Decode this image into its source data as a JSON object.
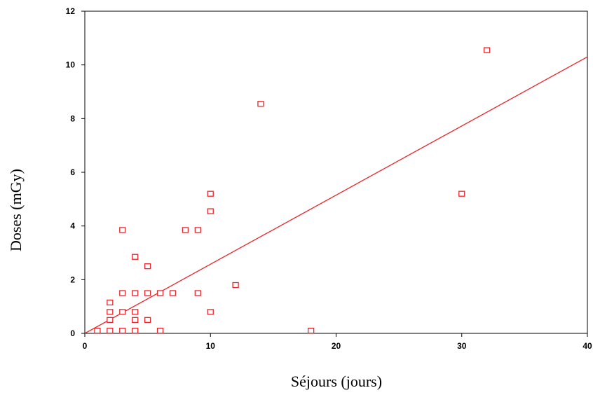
{
  "chart_data": {
    "type": "scatter",
    "title": "",
    "xlabel": "Séjours (jours)",
    "ylabel": "Doses (mGy)",
    "xlim": [
      0,
      40
    ],
    "ylim": [
      0,
      12
    ],
    "x_ticks": [
      0,
      10,
      20,
      30,
      40
    ],
    "y_ticks": [
      0,
      2,
      4,
      6,
      8,
      10,
      12
    ],
    "x_tick_labels": [
      "0",
      "10",
      "20",
      "30",
      "40"
    ],
    "y_tick_labels": [
      "0",
      "2",
      "4",
      "6",
      "8",
      "10",
      "12"
    ],
    "grid": false,
    "legend": "none",
    "series": [
      {
        "marker": "open-square",
        "color": "#e8262c",
        "points": [
          [
            1,
            0.1
          ],
          [
            2,
            0.1
          ],
          [
            2,
            0.5
          ],
          [
            2,
            0.8
          ],
          [
            2,
            1.15
          ],
          [
            3,
            0.1
          ],
          [
            3,
            0.8
          ],
          [
            3,
            1.5
          ],
          [
            3,
            3.85
          ],
          [
            4,
            0.1
          ],
          [
            4,
            0.5
          ],
          [
            4,
            0.8
          ],
          [
            4,
            1.5
          ],
          [
            4,
            2.85
          ],
          [
            5,
            0.5
          ],
          [
            5,
            1.5
          ],
          [
            5,
            2.5
          ],
          [
            6,
            0.1
          ],
          [
            6,
            1.5
          ],
          [
            7,
            1.5
          ],
          [
            8,
            3.85
          ],
          [
            9,
            1.5
          ],
          [
            9,
            3.85
          ],
          [
            10,
            0.8
          ],
          [
            10,
            4.55
          ],
          [
            10,
            5.2
          ],
          [
            12,
            1.8
          ],
          [
            14,
            8.55
          ],
          [
            18,
            0.1
          ],
          [
            30,
            5.2
          ],
          [
            32,
            10.55
          ]
        ]
      }
    ],
    "fit_line": {
      "type": "linear",
      "color": "#e8262c",
      "from": [
        0,
        0
      ],
      "to": [
        40,
        10.3
      ]
    }
  }
}
